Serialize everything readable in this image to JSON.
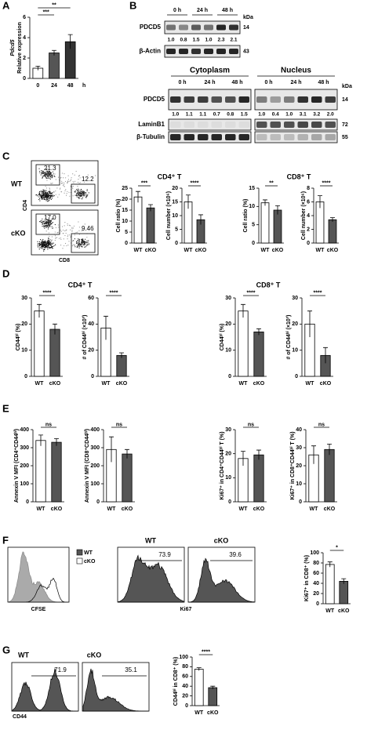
{
  "panel_labels": [
    "A",
    "B",
    "C",
    "D",
    "E",
    "F",
    "G"
  ],
  "chart_data": [
    {
      "type": "bar",
      "ylabel": [
        "Pdcd5",
        "Relative expression"
      ],
      "categories": [
        "0",
        "24",
        "48"
      ],
      "xunit": "h",
      "values": [
        1.0,
        2.5,
        3.6
      ],
      "errors": [
        0.2,
        0.25,
        0.7
      ],
      "colors": [
        "#ffffff",
        "#555555",
        "#333333"
      ],
      "ylim": [
        0,
        6
      ],
      "yticks": [
        0,
        2,
        4,
        6
      ],
      "significance": [
        {
          "label": "***",
          "from": 0,
          "to": 1
        },
        {
          "label": "**",
          "from": 0,
          "to": 2
        }
      ]
    },
    {
      "type": "bar",
      "ylabel": "Cell ratio (%)",
      "categories": [
        "WT",
        "cKO"
      ],
      "values": [
        21,
        16
      ],
      "errors": [
        2.5,
        1.5
      ],
      "colors": [
        "#ffffff",
        "#555555"
      ],
      "ylim": [
        0,
        25
      ],
      "yticks": [
        0,
        5,
        10,
        15,
        20,
        25
      ],
      "significance": [
        {
          "label": "***",
          "from": 0,
          "to": 1
        }
      ]
    },
    {
      "type": "bar",
      "ylabel": "Cell number (×10⁶)",
      "categories": [
        "WT",
        "cKO"
      ],
      "values": [
        15,
        8.5
      ],
      "errors": [
        2.5,
        1.8
      ],
      "colors": [
        "#ffffff",
        "#555555"
      ],
      "ylim": [
        0,
        20
      ],
      "yticks": [
        0,
        5,
        10,
        15,
        20
      ],
      "significance": [
        {
          "label": "****",
          "from": 0,
          "to": 1
        }
      ]
    },
    {
      "type": "bar",
      "ylabel": "Cell ratio (%)",
      "categories": [
        "WT",
        "cKO"
      ],
      "values": [
        11,
        9
      ],
      "errors": [
        0.8,
        1.2
      ],
      "colors": [
        "#ffffff",
        "#555555"
      ],
      "ylim": [
        0,
        15
      ],
      "yticks": [
        0,
        5,
        10,
        15
      ],
      "significance": [
        {
          "label": "**",
          "from": 0,
          "to": 1
        }
      ]
    },
    {
      "type": "bar",
      "ylabel": "Cell number (×10⁶)",
      "categories": [
        "WT",
        "cKO"
      ],
      "values": [
        6,
        3.4
      ],
      "errors": [
        0.9,
        0.3
      ],
      "colors": [
        "#ffffff",
        "#555555"
      ],
      "ylim": [
        0,
        8
      ],
      "yticks": [
        0,
        2,
        4,
        6,
        8
      ],
      "significance": [
        {
          "label": "****",
          "from": 0,
          "to": 1
        }
      ]
    },
    {
      "type": "bar",
      "ylabel": "CD44ʰⁱ (%)",
      "categories": [
        "WT",
        "cKO"
      ],
      "values": [
        25,
        18
      ],
      "errors": [
        2.5,
        2
      ],
      "colors": [
        "#ffffff",
        "#555555"
      ],
      "ylim": [
        0,
        30
      ],
      "yticks": [
        0,
        10,
        20,
        30
      ],
      "significance": [
        {
          "label": "****",
          "from": 0,
          "to": 1
        }
      ]
    },
    {
      "type": "bar",
      "ylabel": "# of CD44ʰⁱ (×10³)",
      "categories": [
        "WT",
        "cKO"
      ],
      "values": [
        37,
        16
      ],
      "errors": [
        9,
        2
      ],
      "colors": [
        "#ffffff",
        "#555555"
      ],
      "ylim": [
        0,
        60
      ],
      "yticks": [
        0,
        20,
        40,
        60
      ],
      "significance": [
        {
          "label": "****",
          "from": 0,
          "to": 1
        }
      ]
    },
    {
      "type": "bar",
      "ylabel": "CD44ʰⁱ (%)",
      "categories": [
        "WT",
        "cKO"
      ],
      "values": [
        25,
        17
      ],
      "errors": [
        2.5,
        1.2
      ],
      "colors": [
        "#ffffff",
        "#555555"
      ],
      "ylim": [
        0,
        30
      ],
      "yticks": [
        0,
        10,
        20,
        30
      ],
      "significance": [
        {
          "label": "****",
          "from": 0,
          "to": 1
        }
      ]
    },
    {
      "type": "bar",
      "ylabel": "# of CD44ʰⁱ (×10³)",
      "categories": [
        "WT",
        "cKO"
      ],
      "values": [
        20,
        8
      ],
      "errors": [
        5,
        3
      ],
      "colors": [
        "#ffffff",
        "#555555"
      ],
      "ylim": [
        0,
        30
      ],
      "yticks": [
        0,
        10,
        20,
        30
      ],
      "significance": [
        {
          "label": "****",
          "from": 0,
          "to": 1
        }
      ]
    },
    {
      "type": "bar",
      "ylabel": "Annexin V MFI (CD4⁺CD44ʰⁱ)",
      "categories": [
        "WT",
        "cKO"
      ],
      "values": [
        340,
        330
      ],
      "errors": [
        30,
        20
      ],
      "colors": [
        "#ffffff",
        "#555555"
      ],
      "ylim": [
        0,
        400
      ],
      "yticks": [
        0,
        100,
        200,
        300,
        400
      ],
      "significance": [
        {
          "label": "ns",
          "from": 0,
          "to": 1
        }
      ]
    },
    {
      "type": "bar",
      "ylabel": "Annexin V MFI (CD8⁺CD44ʰⁱ)",
      "categories": [
        "WT",
        "cKO"
      ],
      "values": [
        290,
        265
      ],
      "errors": [
        70,
        25
      ],
      "colors": [
        "#ffffff",
        "#555555"
      ],
      "ylim": [
        0,
        400
      ],
      "yticks": [
        0,
        100,
        200,
        300,
        400
      ],
      "significance": [
        {
          "label": "ns",
          "from": 0,
          "to": 1
        }
      ]
    },
    {
      "type": "bar",
      "ylabel": "Ki67⁺ in CD4⁺CD44ʰⁱ T (%)",
      "categories": [
        "WT",
        "cKO"
      ],
      "values": [
        18,
        19.5
      ],
      "errors": [
        3,
        2
      ],
      "colors": [
        "#ffffff",
        "#555555"
      ],
      "ylim": [
        0,
        30
      ],
      "yticks": [
        0,
        10,
        20,
        30
      ],
      "significance": [
        {
          "label": "ns",
          "from": 0,
          "to": 1
        }
      ]
    },
    {
      "type": "bar",
      "ylabel": "Ki67⁺ in CD8⁺CD44ʰⁱ T (%)",
      "categories": [
        "WT",
        "cKO"
      ],
      "values": [
        26,
        29
      ],
      "errors": [
        5,
        3
      ],
      "colors": [
        "#ffffff",
        "#555555"
      ],
      "ylim": [
        0,
        40
      ],
      "yticks": [
        0,
        10,
        20,
        30,
        40
      ],
      "significance": [
        {
          "label": "ns",
          "from": 0,
          "to": 1
        }
      ]
    },
    {
      "type": "bar",
      "ylabel": "Ki67⁺ in CD8⁺ (%)",
      "categories": [
        "WT",
        "cKO"
      ],
      "values": [
        77,
        44
      ],
      "errors": [
        5,
        5
      ],
      "colors": [
        "#ffffff",
        "#555555"
      ],
      "ylim": [
        0,
        100
      ],
      "yticks": [
        0,
        20,
        40,
        60,
        80,
        100
      ],
      "significance": [
        {
          "label": "*",
          "from": 0,
          "to": 1
        }
      ]
    },
    {
      "type": "bar",
      "ylabel": "CD44ʰⁱ in CD8⁺ (%)",
      "categories": [
        "WT",
        "cKO"
      ],
      "values": [
        75,
        37
      ],
      "errors": [
        3,
        3
      ],
      "colors": [
        "#ffffff",
        "#555555"
      ],
      "ylim": [
        0,
        100
      ],
      "yticks": [
        0,
        20,
        40,
        60,
        80,
        100
      ],
      "significance": [
        {
          "label": "****",
          "from": 0,
          "to": 1
        }
      ]
    }
  ],
  "group_titles_c": [
    "CD4⁺ T",
    "CD8⁺ T"
  ],
  "group_titles_d": [
    "CD4⁺ T",
    "CD8⁺ T"
  ],
  "blot_top": {
    "times": [
      "0 h",
      "24 h",
      "48 h"
    ],
    "kda_label": "kDa",
    "rows": [
      {
        "name": "PDCD5",
        "kda": 14
      },
      {
        "name": "β-Actin",
        "kda": 43
      }
    ],
    "quant": [
      "1.0",
      "0.8",
      "1.5",
      "1.0",
      "2.3",
      "2.1"
    ]
  },
  "blot_bottom": {
    "fractions": [
      "Cytoplasm",
      "Nucleus"
    ],
    "times": [
      "0 h",
      "24 h",
      "48 h"
    ],
    "kda_label": "kDa",
    "rows": [
      {
        "name": "PDCD5",
        "kda": 14
      },
      {
        "name": "LaminB1",
        "kda": 72
      },
      {
        "name": "β-Tubulin",
        "kda": 55
      }
    ],
    "quant": [
      "1.0",
      "1.1",
      "1.1",
      "0.7",
      "0.8",
      "1.5",
      "1.0",
      "0.4",
      "1.0",
      "3.1",
      "3.2",
      "2.0"
    ]
  },
  "flow_c": {
    "groups": [
      "WT",
      "cKO"
    ],
    "y_axis": "CD4",
    "x_axis": "CD8",
    "gates": [
      [
        "21.3",
        "12.2"
      ],
      [
        "17.0",
        "9.46"
      ]
    ]
  },
  "flow_f": {
    "legend": [
      "WT",
      "cKO"
    ],
    "overlay_axis": "CFSE",
    "groups": [
      "WT",
      "cKO"
    ],
    "gates": [
      "73.9",
      "39.6"
    ],
    "x_axis": "Ki67"
  },
  "flow_g": {
    "groups": [
      "WT",
      "cKO"
    ],
    "gates": [
      "71.9",
      "35.1"
    ],
    "x_axis": "CD44"
  }
}
